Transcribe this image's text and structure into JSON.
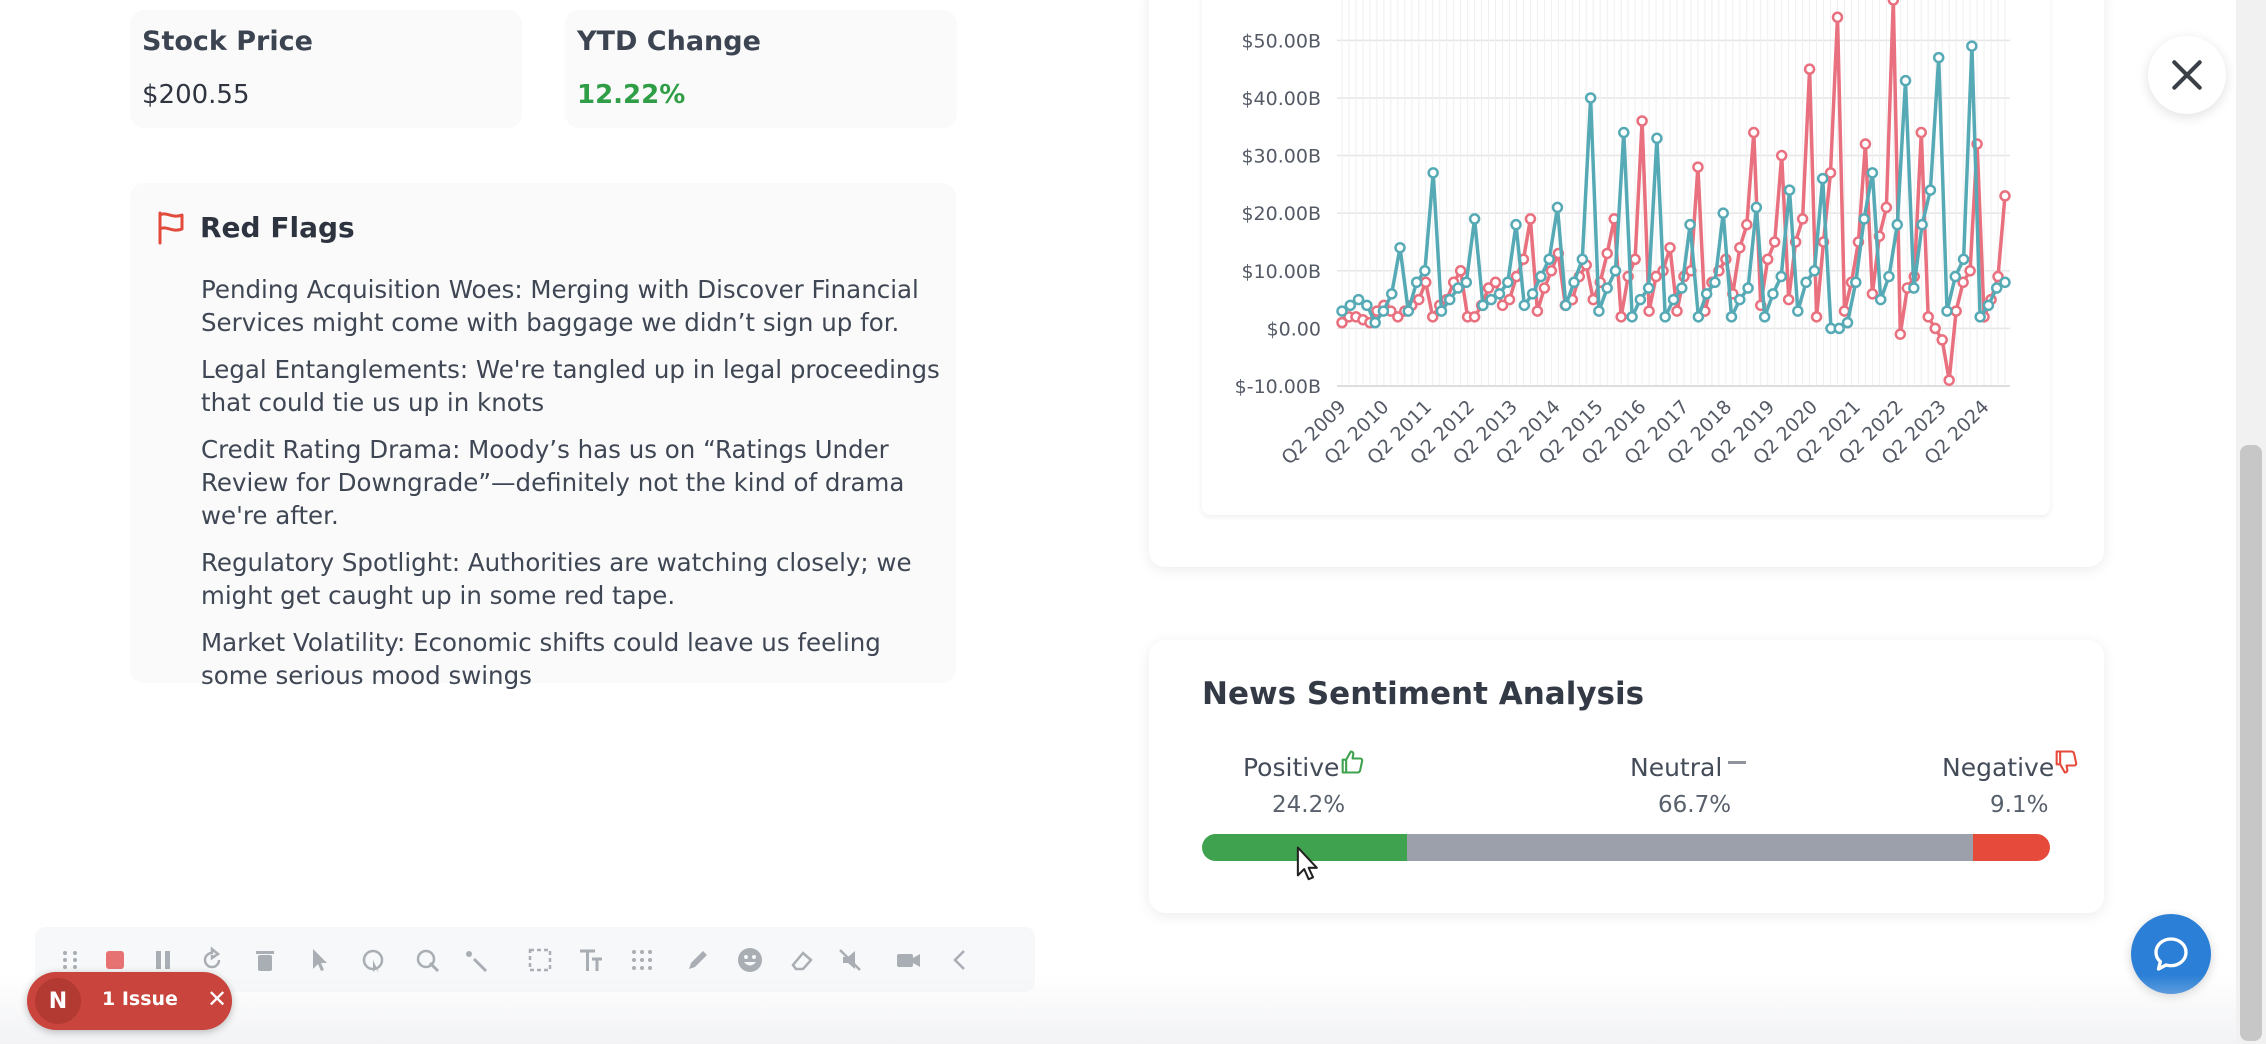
{
  "metrics": {
    "stock_price": {
      "label": "Stock Price",
      "value": "$200.55"
    },
    "ytd_change": {
      "label": "YTD Change",
      "value": "12.22%"
    }
  },
  "red_flags": {
    "title": "Red Flags",
    "icon": "flag-icon",
    "items": [
      "Pending Acquisition Woes: Merging with Discover Financial Services might come with baggage we didn’t sign up for.",
      "Legal Entanglements: We're tangled up in legal proceedings that could tie us up in knots",
      "Credit Rating Drama: Moody’s has us on “Ratings Under Review for Downgrade”—definitely not the kind of drama we're after.",
      "Regulatory Spotlight: Authorities are watching closely; we might get caught up in some red tape.",
      "Market Volatility: Economic shifts could leave us feeling some serious mood swings"
    ]
  },
  "chart_data": {
    "type": "line",
    "title": "",
    "xlabel": "",
    "ylabel": "",
    "y_ticks": [
      "$-10.00B",
      "$0.00",
      "$10.00B",
      "$20.00B",
      "$30.00B",
      "$40.00B",
      "$50.00B"
    ],
    "ylim": [
      -10,
      57
    ],
    "x_ticks": [
      "Q2 2009",
      "Q2 2010",
      "Q2 2011",
      "Q2 2012",
      "Q2 2013",
      "Q2 2014",
      "Q2 2015",
      "Q2 2016",
      "Q2 2017",
      "Q2 2018",
      "Q2 2019",
      "Q2 2020",
      "Q2 2021",
      "Q2 2022",
      "Q2 2023",
      "Q2 2024"
    ],
    "grid": true,
    "colors": {
      "red": "#e8707f",
      "teal": "#56aab5"
    },
    "series": [
      {
        "color_key": "red",
        "values": [
          1,
          2,
          2,
          1.5,
          1,
          3,
          4,
          3,
          2,
          3,
          4,
          5,
          8,
          2,
          4,
          5,
          8,
          10,
          2,
          2,
          4,
          7,
          8,
          4,
          5,
          9,
          12,
          19,
          3,
          7,
          10,
          13,
          4,
          5,
          9,
          11,
          5,
          8,
          13,
          19,
          2,
          9,
          12,
          36,
          3,
          9,
          10,
          14,
          3,
          9,
          10,
          28,
          3,
          8,
          10,
          12,
          6,
          14,
          18,
          34,
          4,
          12,
          15,
          30,
          5,
          15,
          19,
          45,
          2,
          15,
          27,
          54,
          3,
          8,
          15,
          32,
          6,
          16,
          21,
          57,
          -1,
          7,
          9,
          34,
          2,
          0,
          -2,
          -9,
          3,
          8,
          10,
          32,
          2,
          5,
          9,
          23
        ]
      },
      {
        "color_key": "teal",
        "values": [
          3,
          4,
          5,
          4,
          1,
          3,
          6,
          14,
          3,
          8,
          10,
          27,
          3,
          5,
          7,
          8,
          19,
          4,
          5,
          6,
          8,
          18,
          4,
          6,
          9,
          12,
          21,
          4,
          8,
          12,
          40,
          3,
          7,
          10,
          34,
          2,
          5,
          7,
          33,
          2,
          5,
          7,
          18,
          2,
          6,
          8,
          20,
          2,
          5,
          7,
          21,
          2,
          6,
          9,
          24,
          3,
          8,
          10,
          26,
          0,
          0,
          1,
          8,
          19,
          27,
          5,
          9,
          18,
          43,
          7,
          18,
          24,
          47,
          3,
          9,
          12,
          49,
          2,
          4,
          7,
          8
        ]
      }
    ]
  },
  "sentiment": {
    "title": "News Sentiment Analysis",
    "positive": {
      "label": "Positive",
      "value": 24.2,
      "text": "24.2%",
      "color": "#3fa24e"
    },
    "neutral": {
      "label": "Neutral",
      "value": 66.7,
      "text": "66.7%",
      "color": "#9ca0aa"
    },
    "negative": {
      "label": "Negative",
      "value": 9.1,
      "text": "9.1%",
      "color": "#e54a3a"
    }
  },
  "issue_badge": {
    "avatar": "N",
    "text": "1 Issue"
  },
  "toolbar_icons": [
    "drag-handle-icon",
    "stop-icon",
    "pause-icon",
    "restart-icon",
    "trash-icon",
    "cursor-icon",
    "pointer-click-icon",
    "pointer-circle-icon",
    "pointer-magic-icon",
    "select-region-icon",
    "text-icon",
    "grid-icon",
    "pen-icon",
    "emoji-icon",
    "eraser-icon",
    "mute-icon",
    "camera-icon",
    "collapse-icon"
  ]
}
